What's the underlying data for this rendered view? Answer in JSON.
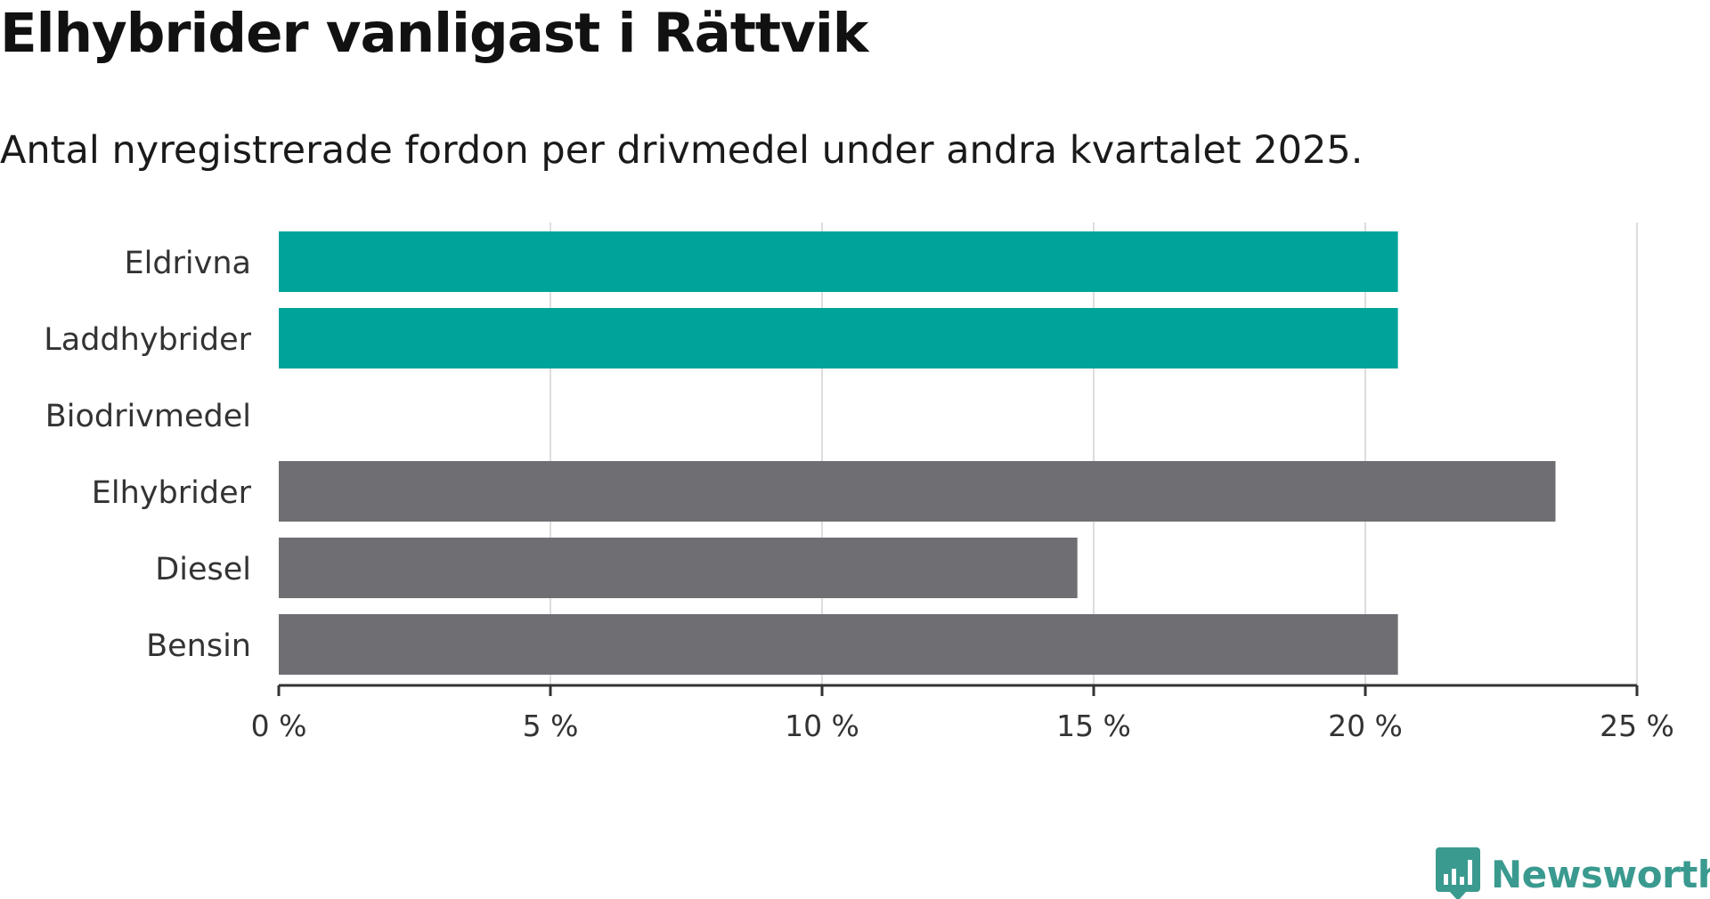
{
  "chart_data": {
    "type": "bar",
    "orientation": "horizontal",
    "title": "Elhybrider vanligast i Rättvik",
    "subtitle": "Antal nyregistrerade fordon per drivmedel under andra kvartalet 2025.",
    "categories": [
      "Eldrivna",
      "Laddhybrider",
      "Biodrivmedel",
      "Elhybrider",
      "Diesel",
      "Bensin"
    ],
    "values": [
      20.6,
      20.6,
      0,
      23.5,
      14.7,
      20.6
    ],
    "bar_colors": [
      "#00a39a",
      "#00a39a",
      "#00a39a",
      "#6e6e73",
      "#6e6e73",
      "#6e6e73"
    ],
    "xlim": [
      0,
      25
    ],
    "xticks": [
      0,
      5,
      10,
      15,
      20,
      25
    ],
    "xtick_labels": [
      "0 %",
      "5 %",
      "10 %",
      "15 %",
      "20 %",
      "25 %"
    ],
    "grid": true,
    "legend": "none"
  },
  "branding": {
    "logo_text": "Newsworthy",
    "logo_color": "#3a9a8f"
  }
}
